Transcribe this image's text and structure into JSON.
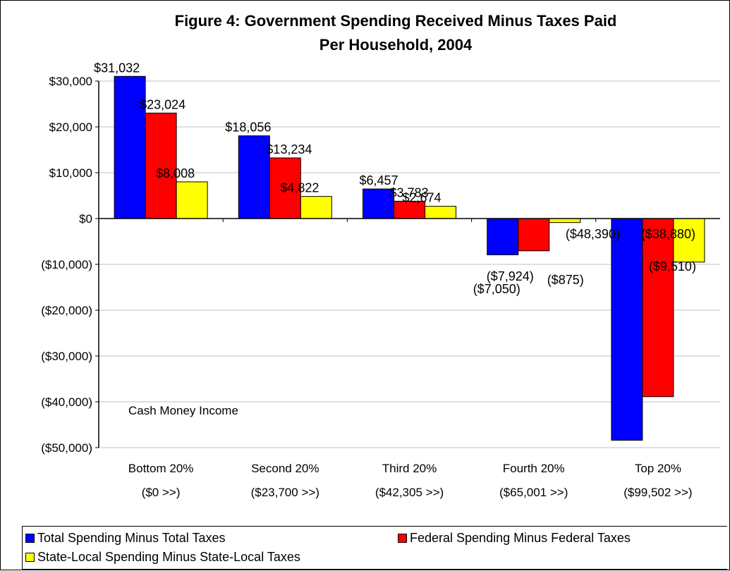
{
  "chart_data": {
    "type": "bar",
    "title": [
      "Figure 4: Government Spending Received Minus Taxes Paid",
      "Per Household, 2004"
    ],
    "categories": [
      [
        "Bottom 20%",
        "($0 >>)"
      ],
      [
        "Second 20%",
        "($23,700 >>)"
      ],
      [
        "Third 20%",
        "($42,305 >>)"
      ],
      [
        "Fourth 20%",
        "($65,001 >>)"
      ],
      [
        "Top 20%",
        "($99,502 >>)"
      ]
    ],
    "series": [
      {
        "name": "Total Spending Minus Total Taxes",
        "color": "#0000FF",
        "values": [
          31032,
          18056,
          6457,
          -7924,
          -48390
        ],
        "labels": [
          "$31,032",
          "$18,056",
          "$6,457",
          "($7,924)",
          "($48,390)"
        ]
      },
      {
        "name": "Federal Spending Minus Federal Taxes",
        "color": "#FF0000",
        "values": [
          23024,
          13234,
          3783,
          -7050,
          -38880
        ],
        "labels": [
          "$23,024",
          "$13,234",
          "$3,783",
          "($7,050)",
          "($38,880)"
        ]
      },
      {
        "name": "State-Local Spending Minus State-Local Taxes",
        "color": "#FFFF00",
        "values": [
          8008,
          4822,
          2674,
          -875,
          -9510
        ],
        "labels": [
          "$8,008",
          "$4,822",
          "$2,674",
          "($875)",
          "($9,510)"
        ]
      }
    ],
    "ylim": [
      -50000,
      30000
    ],
    "yticks": [
      30000,
      20000,
      10000,
      0,
      -10000,
      -20000,
      -30000,
      -40000,
      -50000
    ],
    "ytick_labels": [
      "$30,000",
      "$20,000",
      "$10,000",
      "$0",
      "($10,000)",
      "($20,000)",
      "($30,000)",
      "($40,000)",
      "($50,000)"
    ],
    "annotation": "Cash Money Income",
    "grid": true,
    "legend_position": "bottom"
  }
}
